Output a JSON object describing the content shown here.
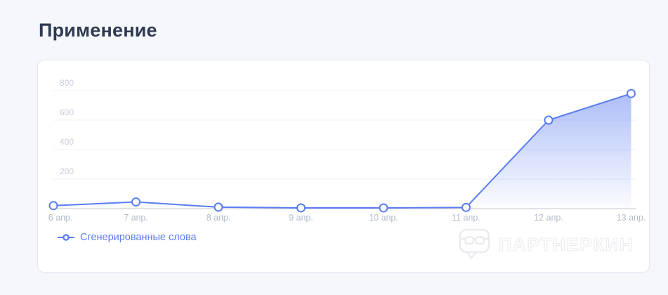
{
  "page": {
    "title": "Применение"
  },
  "legend": {
    "label": "Сгенерированные слова",
    "marker": "line-with-circle-icon"
  },
  "watermark": {
    "text": "ПАРТНЕРКИН",
    "icon": "speech-bubble-glasses-icon"
  },
  "colors": {
    "accent": "#5b7df2",
    "title_text": "#2f3b52",
    "y_tick_label": "#c6cdda",
    "x_tick_label": "#b3bccb",
    "gridline": "#edf0f5",
    "baseline": "#c7cad1",
    "point_fill": "#ffffff",
    "area_gradient_top": "rgba(91,125,242,0.50)",
    "area_gradient_bottom": "rgba(91,125,242,0.02)",
    "card_border": "#dfe7f2",
    "page_bg": "#f5f7fb",
    "watermark_gray": "#e9ebef"
  },
  "chart_data": {
    "type": "area",
    "title": "Применение",
    "categories": [
      "6 апр.",
      "7 апр.",
      "8 апр.",
      "9 апр.",
      "10 апр.",
      "11 апр.",
      "12 апр.",
      "13 апр."
    ],
    "series": [
      {
        "name": "Сгенерированные слова",
        "values": [
          20,
          45,
          10,
          5,
          5,
          8,
          600,
          780
        ]
      }
    ],
    "yticks": [
      200,
      400,
      600,
      800
    ],
    "ylim": [
      0,
      800
    ],
    "grid": true,
    "legend_position": "bottom-left",
    "point_style": "hollow-circle",
    "line_color": "#5b7df2"
  }
}
